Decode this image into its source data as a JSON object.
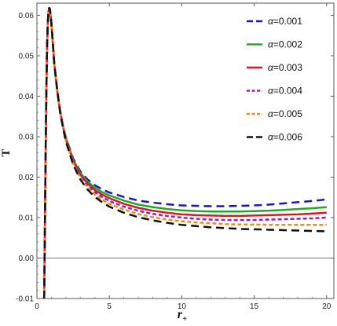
{
  "chart_data": {
    "type": "line",
    "title": "",
    "xlabel": "r+",
    "ylabel": "T",
    "xlim": [
      0,
      20.5
    ],
    "ylim": [
      -0.01,
      0.063
    ],
    "x_ticks": [
      0,
      5,
      10,
      15,
      20
    ],
    "y_ticks": [
      -0.01,
      0.0,
      0.01,
      0.02,
      0.03,
      0.04,
      0.05,
      0.06
    ],
    "x_tick_labels": [
      "0",
      "5",
      "10",
      "15",
      "20"
    ],
    "y_tick_labels": [
      "-0.01",
      "0.00",
      "0.01",
      "0.02",
      "0.03",
      "0.04",
      "0.05",
      "0.06"
    ],
    "reference_line_y": 0.0,
    "legend_position": "top-right",
    "grid": false,
    "series": [
      {
        "name": "α=0.001",
        "color": "#1a1aa6",
        "dash": "long-dash",
        "x": [
          0.5,
          0.55,
          0.6,
          0.65,
          0.7,
          0.75,
          0.8,
          0.85,
          0.9,
          1.0,
          1.1,
          1.2,
          1.4,
          1.6,
          1.8,
          2.0,
          2.5,
          3.0,
          3.5,
          4.0,
          4.5,
          5.0,
          6.0,
          7.0,
          8.0,
          9.0,
          10.0,
          11.0,
          12.0,
          13.0,
          14.0,
          15.0,
          16.0,
          17.0,
          18.0,
          19.0,
          20.0
        ],
        "y": [
          -0.01,
          0.007,
          0.025,
          0.041,
          0.052,
          0.058,
          0.061,
          0.0618,
          0.0615,
          0.058,
          0.053,
          0.048,
          0.0415,
          0.0365,
          0.0327,
          0.0298,
          0.0246,
          0.0214,
          0.0194,
          0.018,
          0.017,
          0.0162,
          0.0151,
          0.0142,
          0.0137,
          0.0133,
          0.013,
          0.0129,
          0.0128,
          0.0128,
          0.0129,
          0.013,
          0.0132,
          0.0135,
          0.0138,
          0.0141,
          0.0145
        ]
      },
      {
        "name": "α=0.002",
        "color": "#22aa22",
        "dash": "solid",
        "x": [
          0.5,
          0.55,
          0.6,
          0.65,
          0.7,
          0.75,
          0.8,
          0.85,
          0.9,
          1.0,
          1.1,
          1.2,
          1.4,
          1.6,
          1.8,
          2.0,
          2.5,
          3.0,
          3.5,
          4.0,
          4.5,
          5.0,
          6.0,
          7.0,
          8.0,
          9.0,
          10.0,
          11.0,
          12.0,
          13.0,
          14.0,
          15.0,
          16.0,
          17.0,
          18.0,
          19.0,
          20.0
        ],
        "y": [
          -0.01,
          0.007,
          0.025,
          0.041,
          0.052,
          0.058,
          0.061,
          0.0618,
          0.0615,
          0.058,
          0.053,
          0.048,
          0.0415,
          0.0364,
          0.0326,
          0.0296,
          0.0243,
          0.021,
          0.0189,
          0.0174,
          0.0163,
          0.0155,
          0.0142,
          0.0132,
          0.0126,
          0.0121,
          0.0118,
          0.0116,
          0.0115,
          0.0115,
          0.0115,
          0.0116,
          0.0117,
          0.0119,
          0.0121,
          0.0123,
          0.0126
        ]
      },
      {
        "name": "α=0.003",
        "color": "#d11a2a",
        "dash": "solid",
        "x": [
          0.5,
          0.55,
          0.6,
          0.65,
          0.7,
          0.75,
          0.8,
          0.85,
          0.9,
          1.0,
          1.1,
          1.2,
          1.4,
          1.6,
          1.8,
          2.0,
          2.5,
          3.0,
          3.5,
          4.0,
          4.5,
          5.0,
          6.0,
          7.0,
          8.0,
          9.0,
          10.0,
          11.0,
          12.0,
          13.0,
          14.0,
          15.0,
          16.0,
          17.0,
          18.0,
          19.0,
          20.0
        ],
        "y": [
          -0.01,
          0.007,
          0.025,
          0.041,
          0.052,
          0.058,
          0.061,
          0.0618,
          0.0615,
          0.058,
          0.053,
          0.048,
          0.0415,
          0.0363,
          0.0325,
          0.0294,
          0.024,
          0.0206,
          0.0184,
          0.0168,
          0.0157,
          0.0148,
          0.0134,
          0.0124,
          0.0117,
          0.0112,
          0.0108,
          0.0106,
          0.0105,
          0.0104,
          0.0104,
          0.0105,
          0.0106,
          0.0107,
          0.0108,
          0.011,
          0.0112
        ]
      },
      {
        "name": "α=0.004",
        "color": "#9922aa",
        "dash": "short-dash",
        "x": [
          0.5,
          0.55,
          0.6,
          0.65,
          0.7,
          0.75,
          0.8,
          0.85,
          0.9,
          1.0,
          1.1,
          1.2,
          1.4,
          1.6,
          1.8,
          2.0,
          2.5,
          3.0,
          3.5,
          4.0,
          4.5,
          5.0,
          6.0,
          7.0,
          8.0,
          9.0,
          10.0,
          11.0,
          12.0,
          13.0,
          14.0,
          15.0,
          16.0,
          17.0,
          18.0,
          19.0,
          20.0
        ],
        "y": [
          -0.01,
          0.007,
          0.025,
          0.041,
          0.052,
          0.058,
          0.061,
          0.0618,
          0.0615,
          0.058,
          0.053,
          0.048,
          0.0415,
          0.0362,
          0.0324,
          0.0292,
          0.0237,
          0.0202,
          0.0179,
          0.0163,
          0.0151,
          0.0141,
          0.0127,
          0.0117,
          0.0109,
          0.0104,
          0.01,
          0.0097,
          0.0095,
          0.0094,
          0.0094,
          0.0094,
          0.0095,
          0.0096,
          0.0097,
          0.0098,
          0.01
        ]
      },
      {
        "name": "α=0.005",
        "color": "#f08a12",
        "dash": "short-dash",
        "x": [
          0.5,
          0.55,
          0.6,
          0.65,
          0.7,
          0.75,
          0.8,
          0.85,
          0.9,
          1.0,
          1.1,
          1.2,
          1.4,
          1.6,
          1.8,
          2.0,
          2.5,
          3.0,
          3.5,
          4.0,
          4.5,
          5.0,
          6.0,
          7.0,
          8.0,
          9.0,
          10.0,
          11.0,
          12.0,
          13.0,
          14.0,
          15.0,
          16.0,
          17.0,
          18.0,
          19.0,
          20.0
        ],
        "y": [
          -0.01,
          0.007,
          0.025,
          0.041,
          0.052,
          0.058,
          0.061,
          0.0618,
          0.0615,
          0.058,
          0.053,
          0.048,
          0.0415,
          0.0361,
          0.0323,
          0.029,
          0.0234,
          0.0198,
          0.0174,
          0.0157,
          0.0144,
          0.0134,
          0.012,
          0.0109,
          0.0101,
          0.0095,
          0.0091,
          0.0088,
          0.0086,
          0.0084,
          0.0083,
          0.0083,
          0.0082,
          0.0082,
          0.0082,
          0.0082,
          0.0082
        ]
      },
      {
        "name": "α=0.006",
        "color": "#111111",
        "dash": "long-dash",
        "x": [
          0.5,
          0.55,
          0.6,
          0.65,
          0.7,
          0.75,
          0.8,
          0.85,
          0.9,
          1.0,
          1.1,
          1.2,
          1.4,
          1.6,
          1.8,
          2.0,
          2.5,
          3.0,
          3.5,
          4.0,
          4.5,
          5.0,
          6.0,
          7.0,
          8.0,
          9.0,
          10.0,
          11.0,
          12.0,
          13.0,
          14.0,
          15.0,
          16.0,
          17.0,
          18.0,
          19.0,
          20.0
        ],
        "y": [
          -0.01,
          0.007,
          0.025,
          0.041,
          0.052,
          0.058,
          0.061,
          0.0618,
          0.0615,
          0.058,
          0.053,
          0.048,
          0.0415,
          0.036,
          0.0322,
          0.0288,
          0.0231,
          0.0194,
          0.0169,
          0.0151,
          0.0138,
          0.0127,
          0.0112,
          0.0101,
          0.0093,
          0.0087,
          0.0082,
          0.0079,
          0.0076,
          0.0074,
          0.0072,
          0.0071,
          0.007,
          0.0069,
          0.0068,
          0.0067,
          0.0066
        ]
      }
    ]
  }
}
